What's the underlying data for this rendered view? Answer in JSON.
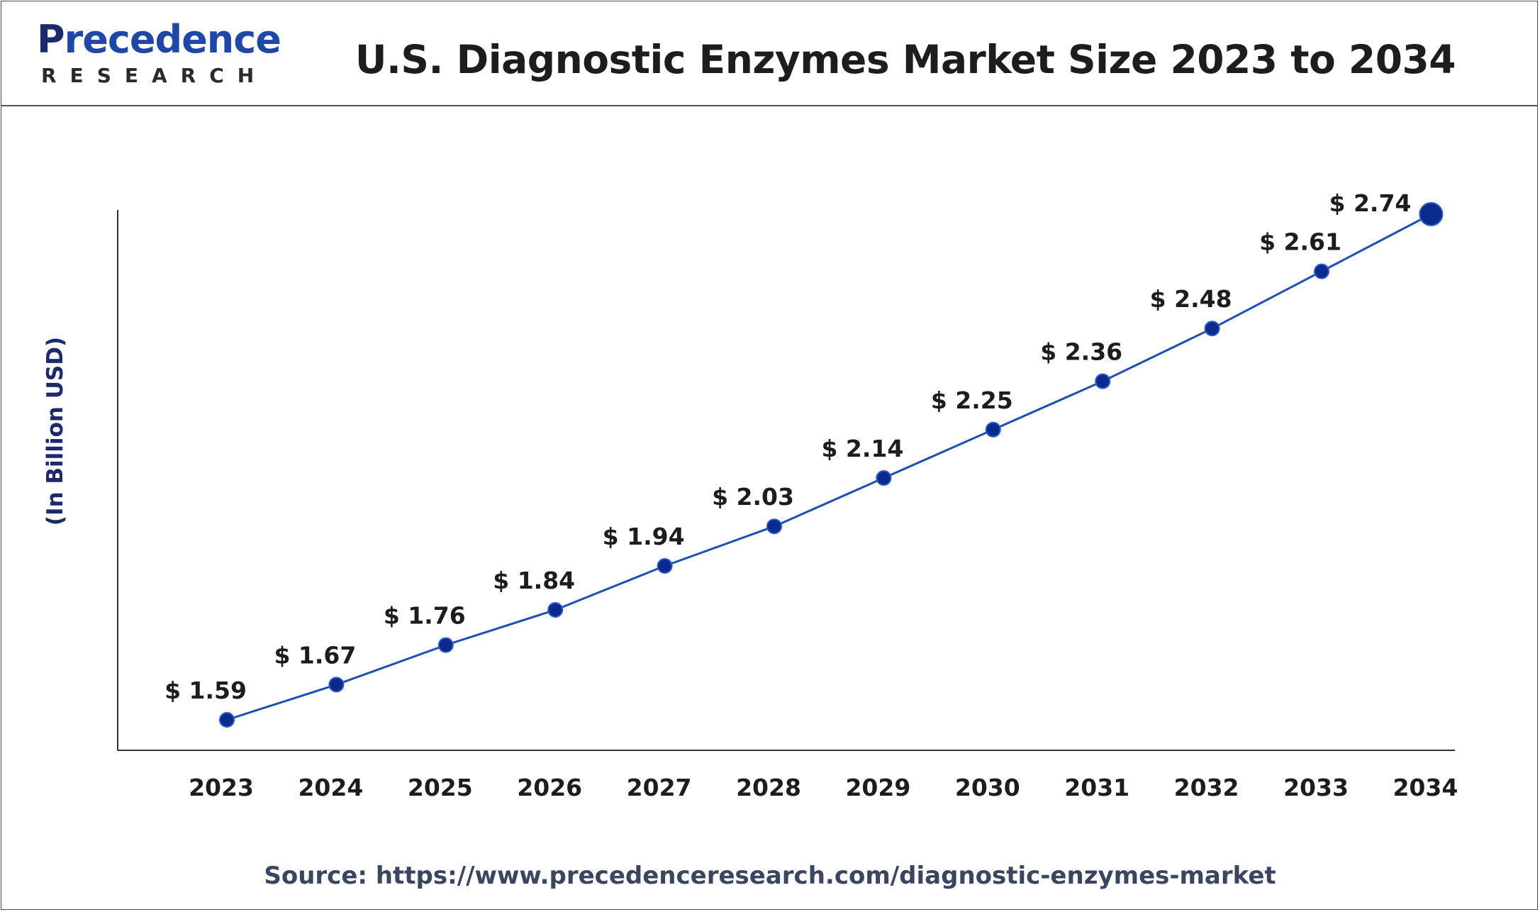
{
  "logo": {
    "main_initial": "P",
    "main_rest": "recedence",
    "sub": "RESEARCH"
  },
  "title": "U.S. Diagnostic Enzymes Market Size 2023 to 2034",
  "source": "Source: https://www.precedenceresearch.com/diagnostic-enzymes-market",
  "colors": {
    "line": "#1f4fb4",
    "marker": "#0a2b8c",
    "axis": "#333333",
    "label": "#1d1d1d",
    "ylabel": "#1c2a6b"
  },
  "chart_data": {
    "type": "line",
    "title": "U.S. Diagnostic Enzymes Market Size 2023 to 2034",
    "xlabel": "",
    "ylabel": "(In Billion USD)",
    "categories": [
      "2023",
      "2024",
      "2025",
      "2026",
      "2027",
      "2028",
      "2029",
      "2030",
      "2031",
      "2032",
      "2033",
      "2034"
    ],
    "values": [
      1.59,
      1.67,
      1.76,
      1.84,
      1.94,
      2.03,
      2.14,
      2.25,
      2.36,
      2.48,
      2.61,
      2.74
    ],
    "data_labels": [
      "$ 1.59",
      "$ 1.67",
      "$ 1.76",
      "$ 1.84",
      "$ 1.94",
      "$ 2.03",
      "$ 2.14",
      "$ 2.25",
      "$ 2.36",
      "$ 2.48",
      "$ 2.61",
      "$ 2.74"
    ],
    "grid": false,
    "legend": "none"
  }
}
